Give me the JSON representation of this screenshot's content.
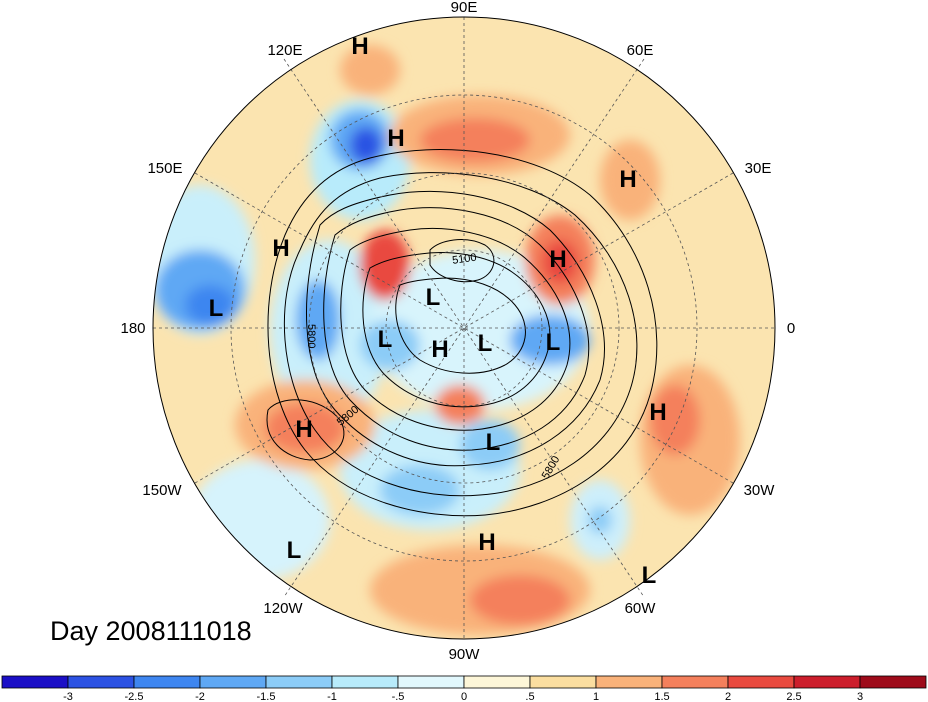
{
  "title": "Day 2008111018",
  "longitude_labels": {
    "lon_90e": "90E",
    "lon_60e": "60E",
    "lon_120e": "120E",
    "lon_30e": "30E",
    "lon_150e": "150E",
    "lon_0": "0",
    "lon_180": "180",
    "lon_150w": "150W",
    "lon_30w": "30W",
    "lon_120w": "120W",
    "lon_60w": "60W",
    "lon_90w": "90W"
  },
  "pressure_centers": [
    {
      "type": "H",
      "name": "h-mongolia"
    },
    {
      "type": "H",
      "name": "h-east-asia"
    },
    {
      "type": "H",
      "name": "h-west-pacific"
    },
    {
      "type": "H",
      "name": "h-middle-east"
    },
    {
      "type": "H",
      "name": "h-europe"
    },
    {
      "type": "H",
      "name": "h-arctic"
    },
    {
      "type": "H",
      "name": "h-northeast-pacific"
    },
    {
      "type": "H",
      "name": "h-atlantic"
    },
    {
      "type": "H",
      "name": "h-caribbean"
    },
    {
      "type": "L",
      "name": "l-pacific"
    },
    {
      "type": "L",
      "name": "l-siberia"
    },
    {
      "type": "L",
      "name": "l-bering"
    },
    {
      "type": "L",
      "name": "l-greenland"
    },
    {
      "type": "L",
      "name": "l-iceland"
    },
    {
      "type": "L",
      "name": "l-hudson"
    },
    {
      "type": "L",
      "name": "l-east-pacific"
    },
    {
      "type": "L",
      "name": "l-south-atlantic"
    }
  ],
  "contour_labels": [
    "5100",
    "5800",
    "5800",
    "5800"
  ],
  "colorbar": {
    "ticks": [
      "-3",
      "-2.5",
      "-2",
      "-1.5",
      "-1",
      "-.5",
      "0",
      ".5",
      "1",
      "1.5",
      "2",
      "2.5",
      "3"
    ],
    "colors": [
      "#1b0fc6",
      "#2c52e3",
      "#3e86f0",
      "#5fa8f4",
      "#8cccf7",
      "#b8ebfb",
      "#e2f8fd",
      "#fdf6d8",
      "#fbdea0",
      "#f9b27a",
      "#f4805c",
      "#e94a3f",
      "#cc1e2c",
      "#9e0b1a"
    ]
  }
}
